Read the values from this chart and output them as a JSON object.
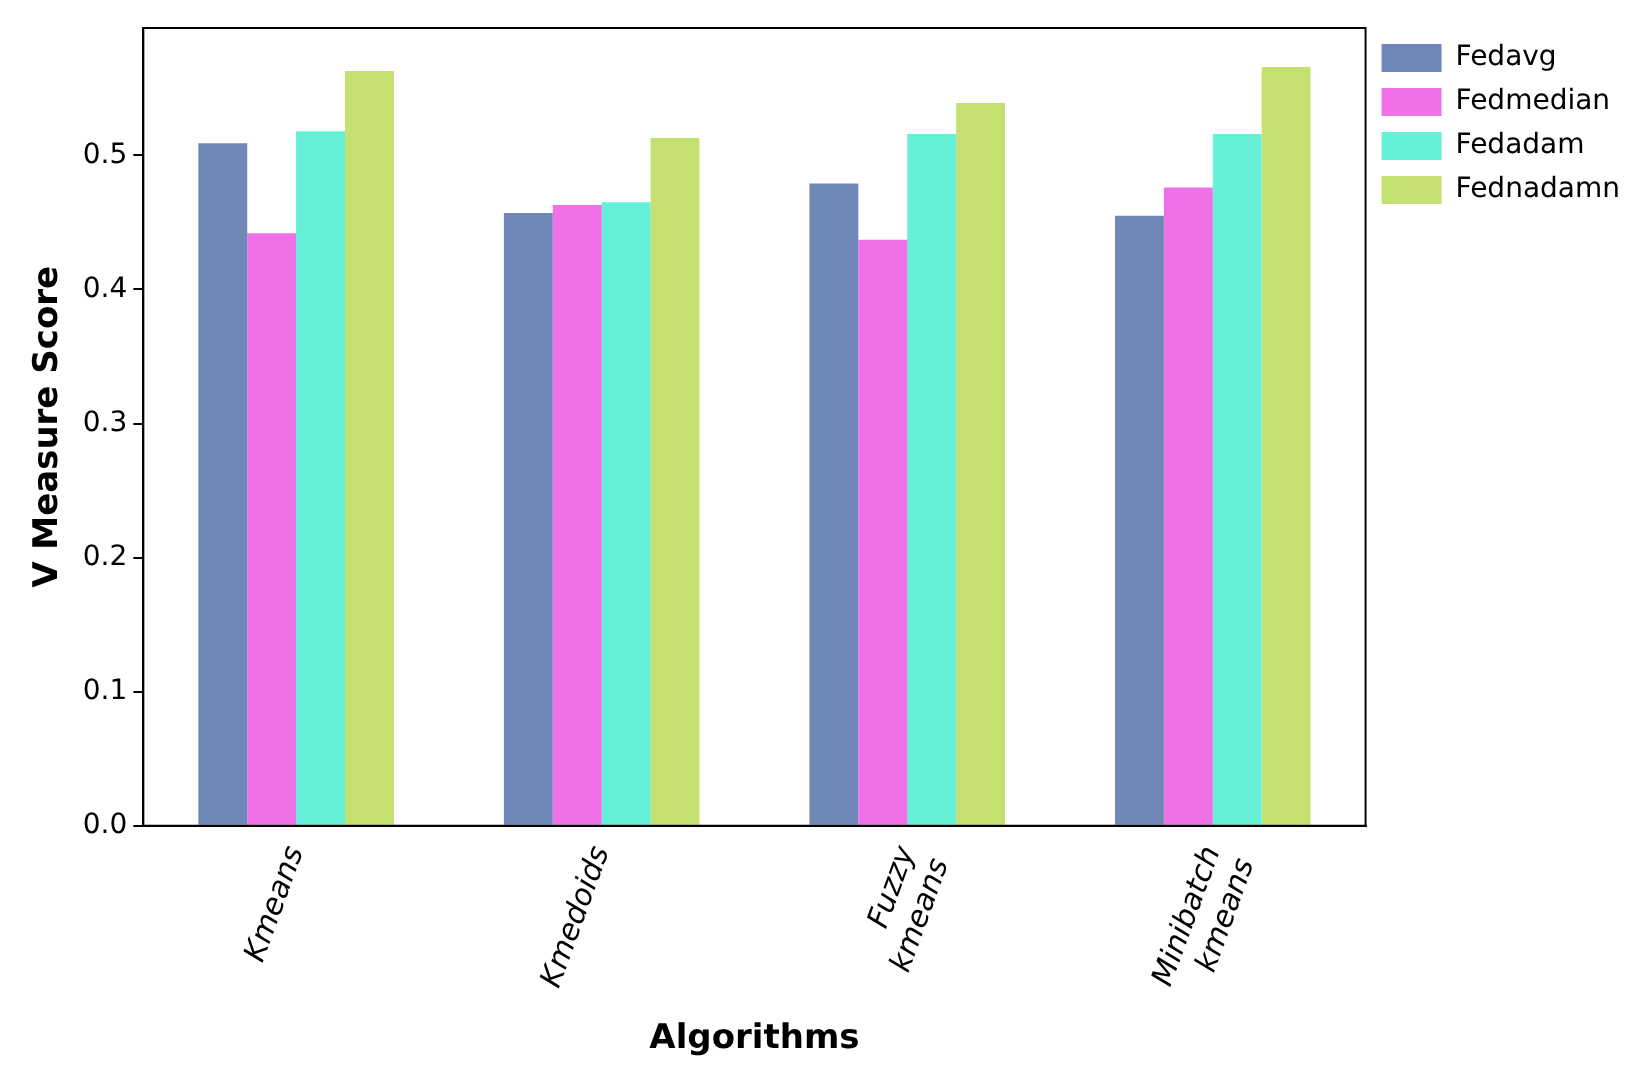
{
  "chart_data": {
    "type": "bar",
    "xlabel": "Algorithms",
    "ylabel": "V Measure Score",
    "categories": [
      "Kmeans",
      "Kmedoids",
      "Fuzzy kmeans",
      "Minibatch kmeans"
    ],
    "series": [
      {
        "name": "Fedavg",
        "color": "#7088b8",
        "values": [
          0.509,
          0.457,
          0.479,
          0.455
        ]
      },
      {
        "name": "Fedmedian",
        "color": "#f070e8",
        "values": [
          0.442,
          0.463,
          0.437,
          0.476
        ]
      },
      {
        "name": "Fedadam",
        "color": "#66f0d8",
        "values": [
          0.518,
          0.465,
          0.516,
          0.516
        ]
      },
      {
        "name": "Fednadamn",
        "color": "#c4e070",
        "values": [
          0.563,
          0.513,
          0.539,
          0.566
        ]
      }
    ],
    "ylim": [
      0,
      0.595
    ],
    "yticks": [
      {
        "value": 0,
        "label": "0.0"
      },
      0.1,
      0.2,
      0.3,
      0.4,
      0.5
    ],
    "grid": false,
    "legend": "right"
  }
}
